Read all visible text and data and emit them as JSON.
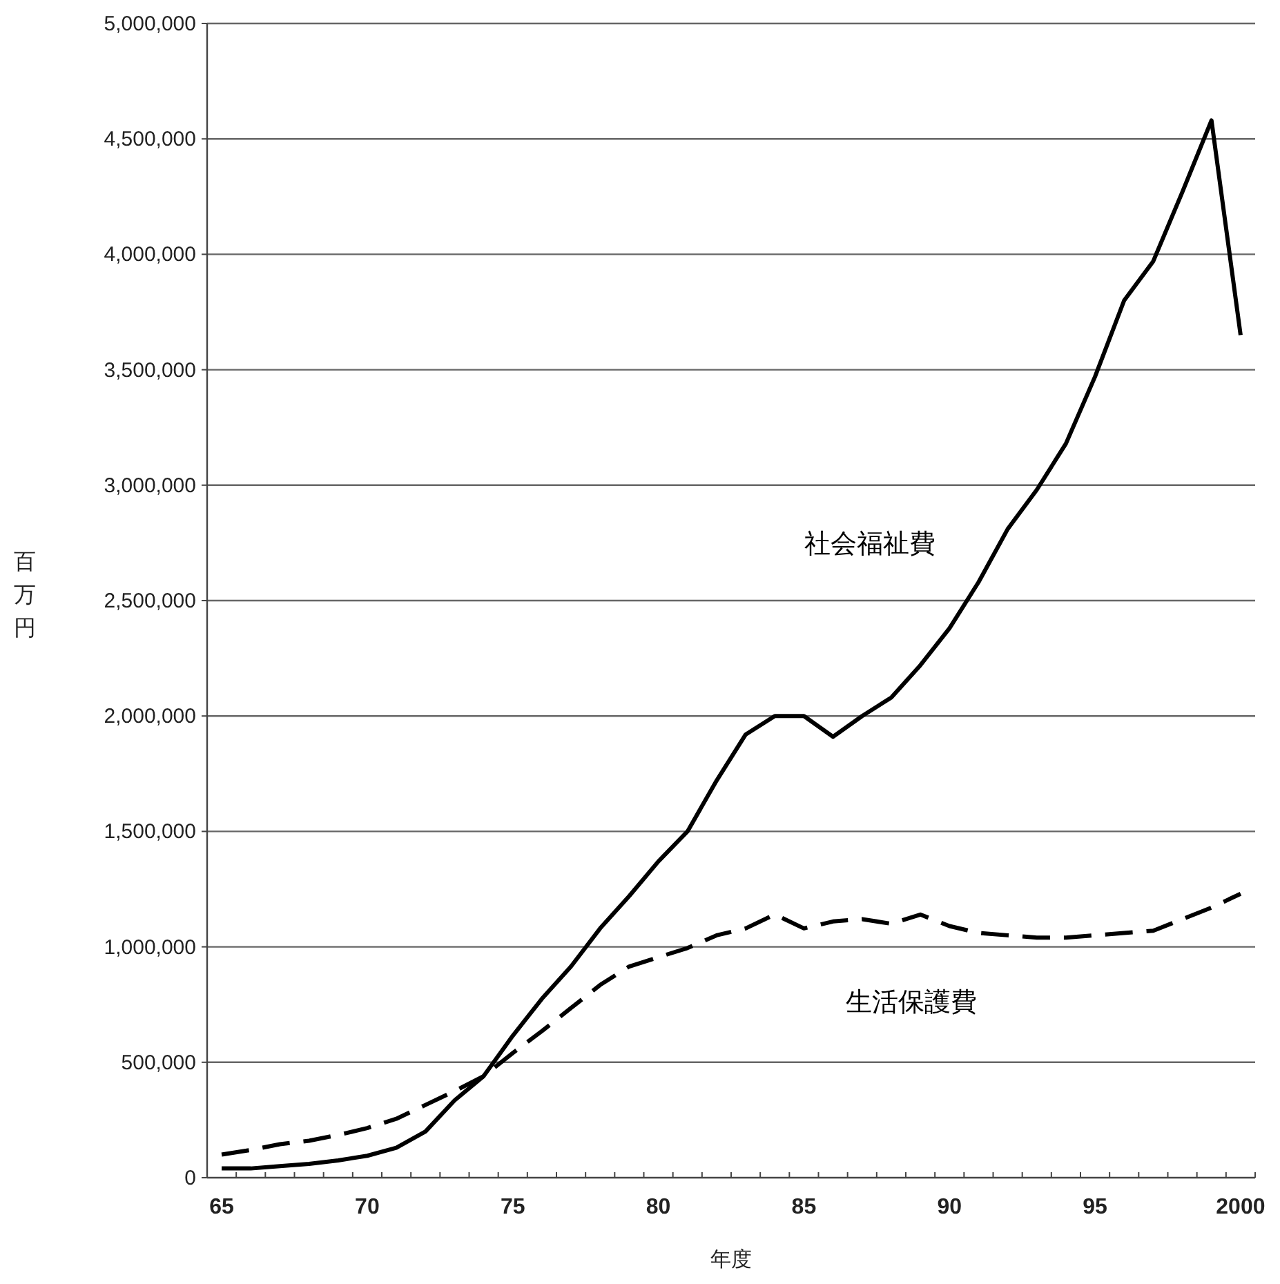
{
  "chart_data": {
    "type": "line",
    "xlabel": "年度",
    "ylabel": "百万円",
    "categories": [
      "65",
      null,
      null,
      null,
      null,
      "70",
      null,
      null,
      null,
      null,
      "75",
      null,
      null,
      null,
      null,
      "80",
      null,
      null,
      null,
      null,
      "85",
      null,
      null,
      null,
      null,
      "90",
      null,
      null,
      null,
      null,
      "95",
      null,
      null,
      null,
      null,
      "2000"
    ],
    "series": [
      {
        "name": "社会福祉費",
        "color": "#000000",
        "line_style": "solid",
        "values": [
          40000,
          40000,
          50000,
          60000,
          75000,
          95000,
          130000,
          200000,
          335000,
          440000,
          615000,
          775000,
          915000,
          1080000,
          1220000,
          1370000,
          1500000,
          1720000,
          1920000,
          2000000,
          2000000,
          1910000,
          2000000,
          2080000,
          2220000,
          2380000,
          2580000,
          2810000,
          2980000,
          3180000,
          3470000,
          3800000,
          3970000,
          4270000,
          4580000,
          3650000
        ]
      },
      {
        "name": "生活保護費",
        "color": "#000000",
        "line_style": "dashed",
        "values": [
          100000,
          120000,
          145000,
          160000,
          185000,
          215000,
          255000,
          315000,
          375000,
          440000,
          540000,
          635000,
          735000,
          835000,
          915000,
          955000,
          995000,
          1050000,
          1080000,
          1140000,
          1080000,
          1110000,
          1120000,
          1100000,
          1140000,
          1090000,
          1060000,
          1050000,
          1040000,
          1040000,
          1050000,
          1060000,
          1070000,
          1120000,
          1170000,
          1230000
        ]
      }
    ],
    "ylim": [
      0,
      5000000
    ],
    "yticks": [
      {
        "value": 0,
        "label": "0"
      },
      {
        "value": 500000,
        "label": "500,000"
      },
      {
        "value": 1000000,
        "label": "1,000,000"
      },
      {
        "value": 1500000,
        "label": "1,500,000"
      },
      {
        "value": 2000000,
        "label": "2,000,000"
      },
      {
        "value": 2500000,
        "label": "2,500,000"
      },
      {
        "value": 3000000,
        "label": "3,000,000"
      },
      {
        "value": 3500000,
        "label": "3,500,000"
      },
      {
        "value": 4000000,
        "label": "4,000,000"
      },
      {
        "value": 4500000,
        "label": "4,500,000"
      },
      {
        "value": 5000000,
        "label": "5,000,000"
      }
    ],
    "grid": "y"
  }
}
